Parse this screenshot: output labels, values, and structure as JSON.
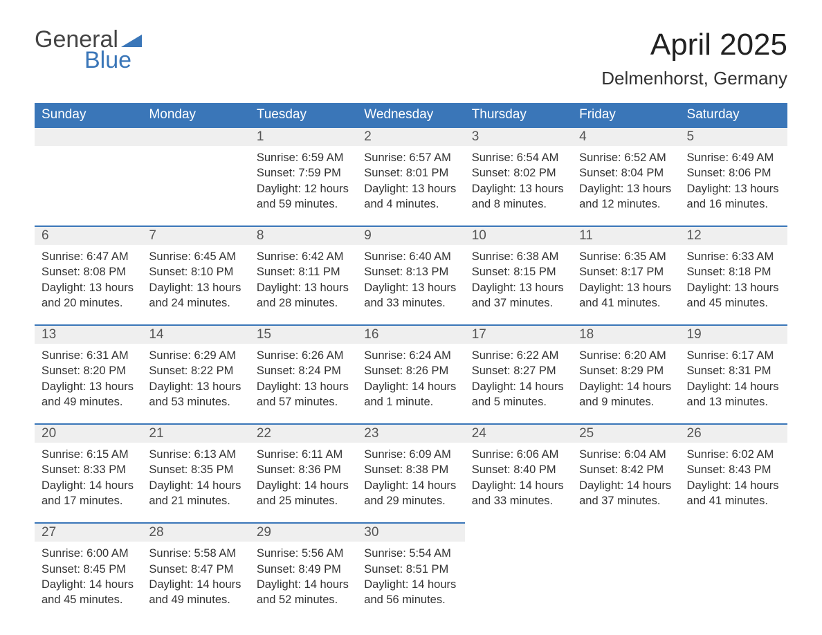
{
  "logo": {
    "text_top": "General",
    "text_bottom": "Blue",
    "triangle_color": "#3a76b8"
  },
  "title": "April 2025",
  "location": "Delmenhorst, Germany",
  "colors": {
    "header_bg": "#3a76b8",
    "header_text": "#ffffff",
    "daynum_bg": "#efefef",
    "border_top": "#3a76b8",
    "body_text": "#333333"
  },
  "weekdays": [
    "Sunday",
    "Monday",
    "Tuesday",
    "Wednesday",
    "Thursday",
    "Friday",
    "Saturday"
  ],
  "weeks": [
    {
      "days": [
        null,
        null,
        {
          "n": "1",
          "sunrise": "6:59 AM",
          "sunset": "7:59 PM",
          "daylight": "12 hours and 59 minutes."
        },
        {
          "n": "2",
          "sunrise": "6:57 AM",
          "sunset": "8:01 PM",
          "daylight": "13 hours and 4 minutes."
        },
        {
          "n": "3",
          "sunrise": "6:54 AM",
          "sunset": "8:02 PM",
          "daylight": "13 hours and 8 minutes."
        },
        {
          "n": "4",
          "sunrise": "6:52 AM",
          "sunset": "8:04 PM",
          "daylight": "13 hours and 12 minutes."
        },
        {
          "n": "5",
          "sunrise": "6:49 AM",
          "sunset": "8:06 PM",
          "daylight": "13 hours and 16 minutes."
        }
      ]
    },
    {
      "days": [
        {
          "n": "6",
          "sunrise": "6:47 AM",
          "sunset": "8:08 PM",
          "daylight": "13 hours and 20 minutes."
        },
        {
          "n": "7",
          "sunrise": "6:45 AM",
          "sunset": "8:10 PM",
          "daylight": "13 hours and 24 minutes."
        },
        {
          "n": "8",
          "sunrise": "6:42 AM",
          "sunset": "8:11 PM",
          "daylight": "13 hours and 28 minutes."
        },
        {
          "n": "9",
          "sunrise": "6:40 AM",
          "sunset": "8:13 PM",
          "daylight": "13 hours and 33 minutes."
        },
        {
          "n": "10",
          "sunrise": "6:38 AM",
          "sunset": "8:15 PM",
          "daylight": "13 hours and 37 minutes."
        },
        {
          "n": "11",
          "sunrise": "6:35 AM",
          "sunset": "8:17 PM",
          "daylight": "13 hours and 41 minutes."
        },
        {
          "n": "12",
          "sunrise": "6:33 AM",
          "sunset": "8:18 PM",
          "daylight": "13 hours and 45 minutes."
        }
      ]
    },
    {
      "days": [
        {
          "n": "13",
          "sunrise": "6:31 AM",
          "sunset": "8:20 PM",
          "daylight": "13 hours and 49 minutes."
        },
        {
          "n": "14",
          "sunrise": "6:29 AM",
          "sunset": "8:22 PM",
          "daylight": "13 hours and 53 minutes."
        },
        {
          "n": "15",
          "sunrise": "6:26 AM",
          "sunset": "8:24 PM",
          "daylight": "13 hours and 57 minutes."
        },
        {
          "n": "16",
          "sunrise": "6:24 AM",
          "sunset": "8:26 PM",
          "daylight": "14 hours and 1 minute."
        },
        {
          "n": "17",
          "sunrise": "6:22 AM",
          "sunset": "8:27 PM",
          "daylight": "14 hours and 5 minutes."
        },
        {
          "n": "18",
          "sunrise": "6:20 AM",
          "sunset": "8:29 PM",
          "daylight": "14 hours and 9 minutes."
        },
        {
          "n": "19",
          "sunrise": "6:17 AM",
          "sunset": "8:31 PM",
          "daylight": "14 hours and 13 minutes."
        }
      ]
    },
    {
      "days": [
        {
          "n": "20",
          "sunrise": "6:15 AM",
          "sunset": "8:33 PM",
          "daylight": "14 hours and 17 minutes."
        },
        {
          "n": "21",
          "sunrise": "6:13 AM",
          "sunset": "8:35 PM",
          "daylight": "14 hours and 21 minutes."
        },
        {
          "n": "22",
          "sunrise": "6:11 AM",
          "sunset": "8:36 PM",
          "daylight": "14 hours and 25 minutes."
        },
        {
          "n": "23",
          "sunrise": "6:09 AM",
          "sunset": "8:38 PM",
          "daylight": "14 hours and 29 minutes."
        },
        {
          "n": "24",
          "sunrise": "6:06 AM",
          "sunset": "8:40 PM",
          "daylight": "14 hours and 33 minutes."
        },
        {
          "n": "25",
          "sunrise": "6:04 AM",
          "sunset": "8:42 PM",
          "daylight": "14 hours and 37 minutes."
        },
        {
          "n": "26",
          "sunrise": "6:02 AM",
          "sunset": "8:43 PM",
          "daylight": "14 hours and 41 minutes."
        }
      ]
    },
    {
      "days": [
        {
          "n": "27",
          "sunrise": "6:00 AM",
          "sunset": "8:45 PM",
          "daylight": "14 hours and 45 minutes."
        },
        {
          "n": "28",
          "sunrise": "5:58 AM",
          "sunset": "8:47 PM",
          "daylight": "14 hours and 49 minutes."
        },
        {
          "n": "29",
          "sunrise": "5:56 AM",
          "sunset": "8:49 PM",
          "daylight": "14 hours and 52 minutes."
        },
        {
          "n": "30",
          "sunrise": "5:54 AM",
          "sunset": "8:51 PM",
          "daylight": "14 hours and 56 minutes."
        },
        null,
        null,
        null
      ]
    }
  ],
  "labels": {
    "sunrise": "Sunrise:",
    "sunset": "Sunset:",
    "daylight": "Daylight:"
  }
}
